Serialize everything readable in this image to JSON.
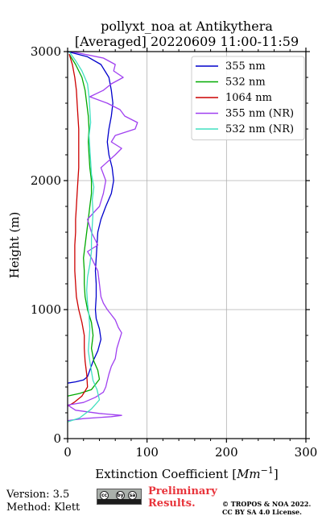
{
  "chart_data": {
    "type": "line",
    "title_lines": [
      "pollyxt_noa at Antikythera",
      "[Averaged] 20220609 11:00-11:59"
    ],
    "xlabel": "Extinction Coefficient [",
    "xlabel_unit": "Mm",
    "xlabel_exp": "−1",
    "xlabel_close": "]",
    "ylabel": "Height (m)",
    "xlim": [
      0,
      300
    ],
    "ylim": [
      0,
      3000
    ],
    "x_ticks": [
      {
        "value": 0,
        "label": "0"
      },
      {
        "value": 100,
        "label": "100"
      },
      {
        "value": 200,
        "label": "200"
      },
      {
        "value": 300,
        "label": "300"
      }
    ],
    "y_ticks": [
      {
        "value": 0,
        "label": "0"
      },
      {
        "value": 1000,
        "label": "1000"
      },
      {
        "value": 2000,
        "label": "2000"
      },
      {
        "value": 3000,
        "label": "3000"
      }
    ],
    "grid": true,
    "legend_position": "top-right",
    "series": [
      {
        "name": "355 nm",
        "color": "#0000cc",
        "points": [
          [
            0,
            430
          ],
          [
            10,
            440
          ],
          [
            20,
            455
          ],
          [
            25,
            480
          ],
          [
            28,
            530
          ],
          [
            32,
            600
          ],
          [
            38,
            680
          ],
          [
            42,
            770
          ],
          [
            40,
            850
          ],
          [
            36,
            930
          ],
          [
            35,
            1000
          ],
          [
            36,
            1100
          ],
          [
            36,
            1200
          ],
          [
            35,
            1300
          ],
          [
            36,
            1400
          ],
          [
            37,
            1500
          ],
          [
            38,
            1600
          ],
          [
            42,
            1700
          ],
          [
            48,
            1800
          ],
          [
            55,
            1900
          ],
          [
            58,
            2000
          ],
          [
            56,
            2100
          ],
          [
            52,
            2200
          ],
          [
            50,
            2300
          ],
          [
            52,
            2400
          ],
          [
            55,
            2500
          ],
          [
            57,
            2600
          ],
          [
            55,
            2700
          ],
          [
            52,
            2800
          ],
          [
            42,
            2900
          ],
          [
            25,
            2960
          ],
          [
            0,
            3000
          ]
        ]
      },
      {
        "name": "532 nm",
        "color": "#00aa00",
        "points": [
          [
            0,
            330
          ],
          [
            15,
            350
          ],
          [
            30,
            380
          ],
          [
            40,
            460
          ],
          [
            38,
            530
          ],
          [
            33,
            600
          ],
          [
            30,
            700
          ],
          [
            32,
            800
          ],
          [
            30,
            900
          ],
          [
            25,
            1000
          ],
          [
            22,
            1100
          ],
          [
            21,
            1200
          ],
          [
            21,
            1300
          ],
          [
            20,
            1400
          ],
          [
            22,
            1500
          ],
          [
            24,
            1600
          ],
          [
            26,
            1700
          ],
          [
            28,
            1800
          ],
          [
            30,
            1900
          ],
          [
            30,
            2000
          ],
          [
            28,
            2100
          ],
          [
            27,
            2200
          ],
          [
            26,
            2300
          ],
          [
            27,
            2400
          ],
          [
            26,
            2500
          ],
          [
            24,
            2600
          ],
          [
            22,
            2700
          ],
          [
            18,
            2800
          ],
          [
            10,
            2900
          ],
          [
            2,
            2980
          ]
        ]
      },
      {
        "name": "1064 nm",
        "color": "#cc0000",
        "points": [
          [
            0,
            250
          ],
          [
            8,
            280
          ],
          [
            18,
            330
          ],
          [
            25,
            400
          ],
          [
            24,
            500
          ],
          [
            22,
            600
          ],
          [
            21,
            700
          ],
          [
            21,
            800
          ],
          [
            18,
            900
          ],
          [
            14,
            1000
          ],
          [
            11,
            1100
          ],
          [
            10,
            1200
          ],
          [
            9,
            1300
          ],
          [
            9,
            1400
          ],
          [
            9,
            1500
          ],
          [
            10,
            1600
          ],
          [
            10,
            1700
          ],
          [
            11,
            1800
          ],
          [
            12,
            1900
          ],
          [
            13,
            2000
          ],
          [
            14,
            2100
          ],
          [
            14,
            2200
          ],
          [
            14,
            2300
          ],
          [
            14,
            2400
          ],
          [
            13,
            2500
          ],
          [
            12,
            2600
          ],
          [
            11,
            2700
          ],
          [
            9,
            2800
          ],
          [
            6,
            2900
          ],
          [
            2,
            2980
          ]
        ]
      },
      {
        "name": "355 nm (NR)",
        "color": "#a040f0",
        "points": [
          [
            0,
            140
          ],
          [
            20,
            155
          ],
          [
            55,
            170
          ],
          [
            68,
            180
          ],
          [
            40,
            195
          ],
          [
            10,
            220
          ],
          [
            0,
            260
          ],
          [
            20,
            280
          ],
          [
            35,
            320
          ],
          [
            45,
            360
          ],
          [
            48,
            400
          ],
          [
            50,
            450
          ],
          [
            52,
            500
          ],
          [
            55,
            560
          ],
          [
            60,
            620
          ],
          [
            62,
            700
          ],
          [
            65,
            760
          ],
          [
            68,
            820
          ],
          [
            64,
            860
          ],
          [
            60,
            920
          ],
          [
            55,
            960
          ],
          [
            50,
            1000
          ],
          [
            45,
            1050
          ],
          [
            42,
            1100
          ],
          [
            40,
            1200
          ],
          [
            38,
            1300
          ],
          [
            30,
            1400
          ],
          [
            25,
            1450
          ],
          [
            38,
            1500
          ],
          [
            30,
            1600
          ],
          [
            25,
            1700
          ],
          [
            40,
            1800
          ],
          [
            45,
            1900
          ],
          [
            48,
            2000
          ],
          [
            42,
            2100
          ],
          [
            60,
            2200
          ],
          [
            68,
            2250
          ],
          [
            55,
            2300
          ],
          [
            60,
            2350
          ],
          [
            85,
            2400
          ],
          [
            88,
            2450
          ],
          [
            72,
            2500
          ],
          [
            66,
            2550
          ],
          [
            50,
            2600
          ],
          [
            28,
            2650
          ],
          [
            45,
            2700
          ],
          [
            55,
            2750
          ],
          [
            70,
            2800
          ],
          [
            58,
            2850
          ],
          [
            60,
            2900
          ],
          [
            45,
            2950
          ],
          [
            5,
            3000
          ]
        ]
      },
      {
        "name": "532 nm (NR)",
        "color": "#40e0c0",
        "points": [
          [
            0,
            130
          ],
          [
            15,
            160
          ],
          [
            30,
            230
          ],
          [
            40,
            300
          ],
          [
            37,
            380
          ],
          [
            32,
            450
          ],
          [
            30,
            520
          ],
          [
            28,
            600
          ],
          [
            26,
            680
          ],
          [
            27,
            760
          ],
          [
            28,
            850
          ],
          [
            27,
            950
          ],
          [
            25,
            1050
          ],
          [
            24,
            1150
          ],
          [
            25,
            1250
          ],
          [
            28,
            1350
          ],
          [
            30,
            1450
          ],
          [
            30,
            1550
          ],
          [
            31,
            1650
          ],
          [
            32,
            1750
          ],
          [
            31,
            1850
          ],
          [
            33,
            1950
          ],
          [
            30,
            2050
          ],
          [
            29,
            2150
          ],
          [
            28,
            2250
          ],
          [
            27,
            2350
          ],
          [
            29,
            2450
          ],
          [
            28,
            2550
          ],
          [
            27,
            2650
          ],
          [
            25,
            2750
          ],
          [
            18,
            2850
          ],
          [
            10,
            2930
          ],
          [
            2,
            3000
          ]
        ]
      }
    ]
  },
  "footer": {
    "version": "Version: 3.5",
    "method": "Method: Klett",
    "cc_icons": [
      "cc",
      "by",
      "sa"
    ],
    "preliminary_line1": "Preliminary",
    "preliminary_line2": "Results.",
    "copyright_line1": "© TROPOS & NOA 2022.",
    "copyright_line2": "CC BY SA 4.0 License."
  }
}
